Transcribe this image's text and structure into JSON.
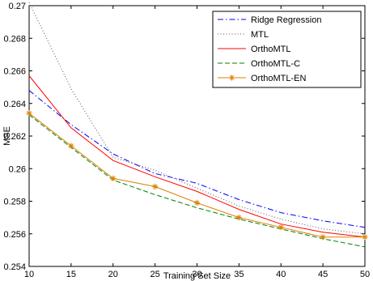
{
  "chart_data": {
    "type": "line",
    "xlabel": "Training Set Size",
    "ylabel": "MSE",
    "xlim": [
      10,
      50
    ],
    "ylim": [
      0.254,
      0.27
    ],
    "xticks": [
      10,
      15,
      20,
      25,
      30,
      35,
      40,
      45,
      50
    ],
    "yticks": [
      0.254,
      0.256,
      0.258,
      0.26,
      0.262,
      0.264,
      0.266,
      0.268,
      0.27
    ],
    "xtick_labels": [
      "10",
      "15",
      "20",
      "25",
      "30",
      "35",
      "40",
      "45",
      "50"
    ],
    "ytick_labels": [
      "0.254",
      "0.256",
      "0.258",
      "0.26",
      "0.262",
      "0.264",
      "0.266",
      "0.268",
      "0.27"
    ],
    "legend_position": "top-right",
    "grid": false,
    "x": [
      10,
      15,
      20,
      25,
      30,
      35,
      40,
      45,
      50
    ],
    "series": [
      {
        "name": "Ridge Regression",
        "values": [
          0.2648,
          0.2627,
          0.2609,
          0.2597,
          0.2591,
          0.2581,
          0.2573,
          0.2568,
          0.2564
        ],
        "color": "#0000ff",
        "style": "dashdot",
        "marker": "none"
      },
      {
        "name": "MTL",
        "values": [
          0.2702,
          0.2649,
          0.2607,
          0.2599,
          0.2588,
          0.2577,
          0.2569,
          0.2563,
          0.256
        ],
        "color": "#555555",
        "style": "dotted",
        "marker": "none"
      },
      {
        "name": "OrthoMTL",
        "values": [
          0.2657,
          0.2625,
          0.2605,
          0.2595,
          0.2586,
          0.2575,
          0.2566,
          0.2561,
          0.2558
        ],
        "color": "#ff0000",
        "style": "solid",
        "marker": "none"
      },
      {
        "name": "OrthoMTL-C",
        "values": [
          0.2633,
          0.2613,
          0.2593,
          0.2584,
          0.2576,
          0.2569,
          0.2563,
          0.2557,
          0.2552
        ],
        "color": "#008000",
        "style": "dashed",
        "marker": "none"
      },
      {
        "name": "OrthoMTL-EN",
        "values": [
          0.2634,
          0.2614,
          0.2594,
          0.2589,
          0.2579,
          0.257,
          0.2564,
          0.2558,
          0.2558
        ],
        "color": "#dd8000",
        "style": "solid",
        "marker": "asterisk"
      }
    ]
  }
}
